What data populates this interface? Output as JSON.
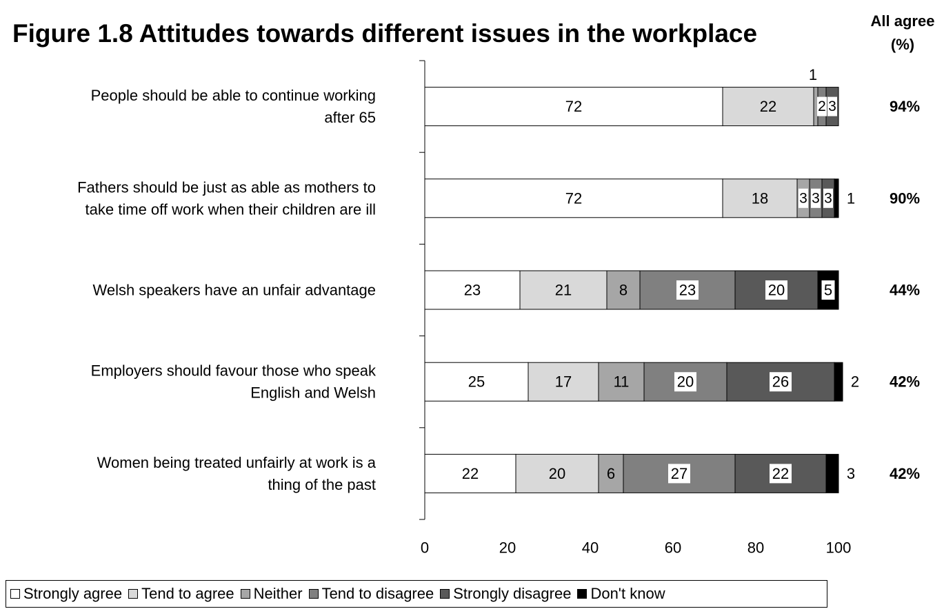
{
  "chart_data": {
    "type": "bar",
    "orientation": "horizontal",
    "stacked": true,
    "title": "Figure 1.8  Attitudes towards different issues in the workplace",
    "xlim": [
      0,
      100
    ],
    "x_ticks": [
      "0",
      "20",
      "40",
      "60",
      "80",
      "100"
    ],
    "grid": false,
    "legend_position": "bottom",
    "categories": [
      [
        "People should be able to continue working",
        "after 65"
      ],
      [
        "Fathers should be just as able as mothers to",
        "take time off work when their children are ill"
      ],
      [
        "Welsh speakers have an unfair advantage"
      ],
      [
        "Employers should favour those who speak",
        "English and Welsh"
      ],
      [
        "Women being treated unfairly at work is a",
        "thing of the past"
      ]
    ],
    "series": [
      {
        "name": "Strongly agree",
        "color": "#ffffff",
        "values": [
          72,
          72,
          23,
          25,
          22
        ]
      },
      {
        "name": "Tend to agree",
        "color": "#d9d9d9",
        "values": [
          22,
          18,
          21,
          17,
          20
        ]
      },
      {
        "name": "Neither",
        "color": "#a6a6a6",
        "values": [
          1,
          3,
          8,
          11,
          6
        ]
      },
      {
        "name": "Tend to disagree",
        "color": "#808080",
        "values": [
          2,
          3,
          23,
          20,
          27
        ]
      },
      {
        "name": "Strongly disagree",
        "color": "#595959",
        "values": [
          3,
          3,
          20,
          26,
          22
        ]
      },
      {
        "name": "Don't know",
        "color": "#000000",
        "values": [
          0,
          1,
          5,
          2,
          3
        ]
      }
    ],
    "all_agree_header": [
      "All agree",
      "(%)"
    ],
    "all_agree": [
      "94%",
      "90%",
      "44%",
      "42%",
      "42%"
    ]
  }
}
